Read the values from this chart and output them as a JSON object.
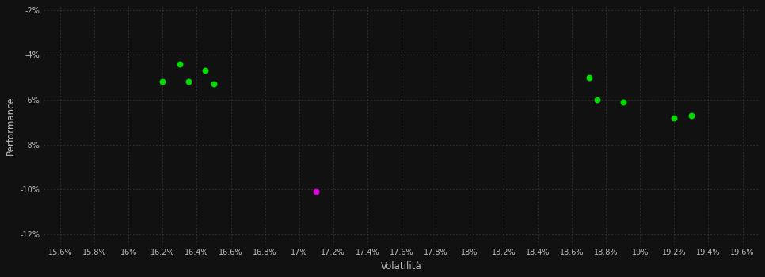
{
  "xlabel": "Volatilità",
  "ylabel": "Performance",
  "background_color": "#111111",
  "text_color": "#bbbbbb",
  "xlim": [
    0.155,
    0.197
  ],
  "ylim": [
    -0.125,
    -0.018
  ],
  "xtick_step": 0.002,
  "ytick_step": 0.02,
  "green_points": [
    [
      0.163,
      -0.044
    ],
    [
      0.1645,
      -0.047
    ],
    [
      0.162,
      -0.052
    ],
    [
      0.1635,
      -0.052
    ],
    [
      0.165,
      -0.053
    ],
    [
      0.187,
      -0.05
    ],
    [
      0.1875,
      -0.06
    ],
    [
      0.189,
      -0.061
    ],
    [
      0.192,
      -0.068
    ],
    [
      0.193,
      -0.067
    ]
  ],
  "magenta_points": [
    [
      0.171,
      -0.101
    ]
  ],
  "point_color_green": "#00dd00",
  "point_color_magenta": "#dd00dd",
  "point_size": 22
}
